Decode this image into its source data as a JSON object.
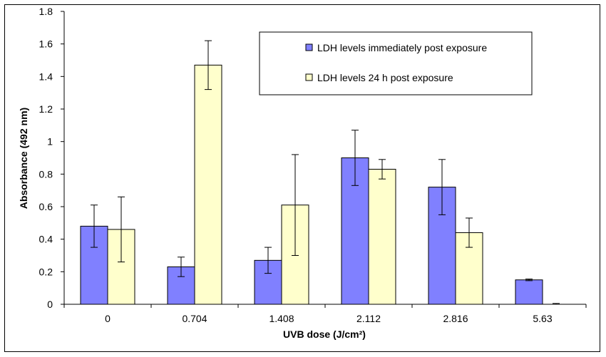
{
  "chart_data": {
    "type": "bar",
    "categories": [
      "0",
      "0.704",
      "1.408",
      "2.112",
      "2.816",
      "5.63"
    ],
    "series": [
      {
        "name": "LDH levels immediately post exposure",
        "color": "#8080ff",
        "values": [
          0.48,
          0.23,
          0.27,
          0.9,
          0.72,
          0.15
        ],
        "error": [
          0.13,
          0.06,
          0.08,
          0.17,
          0.17,
          0.005
        ]
      },
      {
        "name": "LDH levels 24 h post exposure",
        "color": "#ffffcc",
        "values": [
          0.46,
          1.47,
          0.61,
          0.83,
          0.44,
          0.0
        ],
        "error": [
          0.2,
          0.15,
          0.31,
          0.06,
          0.09,
          0.005
        ]
      }
    ],
    "xlabel": "UVB dose (J/cm²)",
    "ylabel": "Absorbance (492 nm)",
    "ylim": [
      0,
      1.8
    ],
    "yticks": [
      "0",
      "0.2",
      "0.4",
      "0.6",
      "0.8",
      "1",
      "1.2",
      "1.4",
      "1.6",
      "1.8"
    ],
    "grid": false,
    "legend_position": "top-right"
  }
}
